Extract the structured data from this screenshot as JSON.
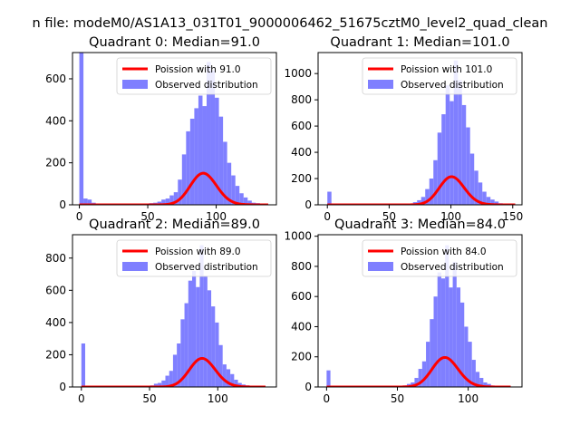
{
  "figure": {
    "suptitle": "n file: modeM0/AS1A13_031T01_9000006462_51675cztM0_level2_quad_clean"
  },
  "colors": {
    "observed": "#7f7fff",
    "poisson": "#ff0000"
  },
  "chart_data": [
    {
      "type": "bar",
      "title": "Quadrant 0: Median=91.0",
      "median": 91.0,
      "xlim": [
        -5,
        144
      ],
      "ylim": [
        0,
        725
      ],
      "xticks": [
        0,
        50,
        100
      ],
      "yticks": [
        0,
        200,
        400,
        600
      ],
      "legend": {
        "placement": "top-right",
        "entries": [
          "Poission with 91.0",
          "Observed distribution"
        ]
      },
      "series": [
        {
          "name": "Observed distribution",
          "kind": "histogram",
          "bin_width": 3,
          "x": [
            0,
            3,
            6,
            9,
            12,
            15,
            18,
            21,
            24,
            27,
            30,
            33,
            36,
            39,
            42,
            45,
            48,
            51,
            54,
            57,
            60,
            63,
            66,
            69,
            72,
            75,
            78,
            81,
            84,
            87,
            90,
            93,
            96,
            99,
            102,
            105,
            108,
            111,
            114,
            117,
            120,
            123,
            126,
            129,
            132,
            135
          ],
          "values": [
            725,
            30,
            25,
            10,
            5,
            5,
            5,
            5,
            5,
            5,
            5,
            5,
            5,
            5,
            5,
            5,
            5,
            8,
            10,
            15,
            25,
            30,
            45,
            60,
            120,
            240,
            350,
            410,
            460,
            520,
            470,
            680,
            640,
            510,
            420,
            300,
            200,
            140,
            90,
            55,
            35,
            20,
            10,
            8,
            6,
            5
          ]
        },
        {
          "name": "Poission with 91.0",
          "kind": "line",
          "lambda": 91.0,
          "scale": 3600,
          "x_range": [
            0,
            138
          ]
        }
      ]
    },
    {
      "type": "bar",
      "title": "Quadrant 1: Median=101.0",
      "median": 101.0,
      "xlim": [
        -7.5,
        157.5
      ],
      "ylim": [
        0,
        1160
      ],
      "xticks": [
        0,
        50,
        100,
        150
      ],
      "yticks": [
        0,
        200,
        400,
        600,
        800,
        1000
      ],
      "legend": {
        "placement": "top-right",
        "entries": [
          "Poission with 101.0",
          "Observed distribution"
        ]
      },
      "series": [
        {
          "name": "Observed distribution",
          "kind": "histogram",
          "bin_width": 3.3,
          "x": [
            0,
            3.3,
            6.6,
            9.9,
            13.2,
            16.5,
            19.8,
            23.1,
            26.4,
            29.7,
            33,
            36.3,
            39.6,
            42.9,
            46.2,
            49.5,
            52.8,
            56.1,
            59.4,
            62.7,
            66,
            69.3,
            72.6,
            75.9,
            79.2,
            82.5,
            85.8,
            89.1,
            92.4,
            95.7,
            99,
            102.3,
            105.6,
            108.9,
            112.2,
            115.5,
            118.8,
            122.1,
            125.4,
            128.7,
            132,
            135.3,
            138.6,
            141.9,
            145.2,
            148.5
          ],
          "values": [
            100,
            5,
            5,
            5,
            5,
            5,
            5,
            5,
            5,
            5,
            5,
            5,
            5,
            5,
            5,
            5,
            5,
            5,
            5,
            5,
            10,
            20,
            35,
            60,
            120,
            200,
            340,
            550,
            690,
            910,
            790,
            1100,
            950,
            760,
            590,
            390,
            260,
            170,
            100,
            60,
            40,
            25,
            12,
            8,
            5,
            3
          ]
        },
        {
          "name": "Poission with 101.0",
          "kind": "line",
          "lambda": 101.0,
          "scale": 5400,
          "x_range": [
            0,
            152
          ]
        }
      ]
    },
    {
      "type": "bar",
      "title": "Quadrant 2: Median=89.0",
      "median": 89.0,
      "xlim": [
        -6.5,
        143
      ],
      "ylim": [
        0,
        945
      ],
      "xticks": [
        0,
        50,
        100
      ],
      "yticks": [
        0,
        200,
        400,
        600,
        800
      ],
      "legend": {
        "placement": "top-right",
        "entries": [
          "Poission with 89.0",
          "Observed distribution"
        ]
      },
      "series": [
        {
          "name": "Observed distribution",
          "kind": "histogram",
          "bin_width": 2.8,
          "x": [
            0,
            2.8,
            5.6,
            8.4,
            11.2,
            14,
            16.8,
            19.6,
            22.4,
            25.2,
            28,
            30.8,
            33.6,
            36.4,
            39.2,
            42,
            44.8,
            47.6,
            50.4,
            53.2,
            56,
            58.8,
            61.6,
            64.4,
            67.2,
            70,
            72.8,
            75.6,
            78.4,
            81.2,
            84,
            86.8,
            89.6,
            92.4,
            95.2,
            98,
            100.8,
            103.6,
            106.4,
            109.2,
            112,
            114.8,
            117.6,
            120.4,
            123.2,
            126
          ],
          "values": [
            270,
            5,
            5,
            5,
            5,
            5,
            5,
            5,
            5,
            5,
            5,
            5,
            5,
            5,
            5,
            5,
            5,
            5,
            10,
            20,
            25,
            40,
            70,
            100,
            200,
            270,
            420,
            520,
            660,
            720,
            620,
            880,
            690,
            600,
            500,
            400,
            260,
            140,
            110,
            80,
            45,
            25,
            15,
            10,
            5,
            3
          ]
        },
        {
          "name": "Poission with 89.0",
          "kind": "line",
          "lambda": 89.0,
          "scale": 4200,
          "x_range": [
            0,
            135
          ]
        }
      ]
    },
    {
      "type": "bar",
      "title": "Quadrant 3: Median=84.0",
      "median": 84.0,
      "xlim": [
        -6,
        138
      ],
      "ylim": [
        0,
        1010
      ],
      "xticks": [
        0,
        50,
        100
      ],
      "yticks": [
        0,
        200,
        400,
        600,
        800,
        1000
      ],
      "legend": {
        "placement": "top-right",
        "entries": [
          "Poission with 84.0",
          "Observed distribution"
        ]
      },
      "series": [
        {
          "name": "Observed distribution",
          "kind": "histogram",
          "bin_width": 2.7,
          "x": [
            0,
            2.7,
            5.4,
            8.1,
            10.8,
            13.5,
            16.2,
            18.9,
            21.6,
            24.3,
            27,
            29.7,
            32.4,
            35.1,
            37.8,
            40.5,
            43.2,
            45.9,
            48.6,
            51.3,
            54,
            56.7,
            59.4,
            62.1,
            64.8,
            67.5,
            70.2,
            72.9,
            75.6,
            78.3,
            81,
            83.7,
            86.4,
            89.1,
            91.8,
            94.5,
            97.2,
            99.9,
            102.6,
            105.3,
            108,
            110.7,
            113.4,
            116.1,
            118.8,
            121.5
          ],
          "values": [
            110,
            5,
            5,
            5,
            5,
            5,
            5,
            5,
            5,
            5,
            5,
            5,
            5,
            5,
            5,
            5,
            5,
            5,
            5,
            5,
            10,
            20,
            30,
            60,
            120,
            170,
            300,
            450,
            600,
            760,
            720,
            940,
            660,
            830,
            660,
            560,
            400,
            300,
            180,
            100,
            60,
            30,
            20,
            10,
            5,
            3
          ]
        },
        {
          "name": "Poission with 84.0",
          "kind": "line",
          "lambda": 84.0,
          "scale": 4500,
          "x_range": [
            0,
            130
          ]
        }
      ]
    }
  ]
}
